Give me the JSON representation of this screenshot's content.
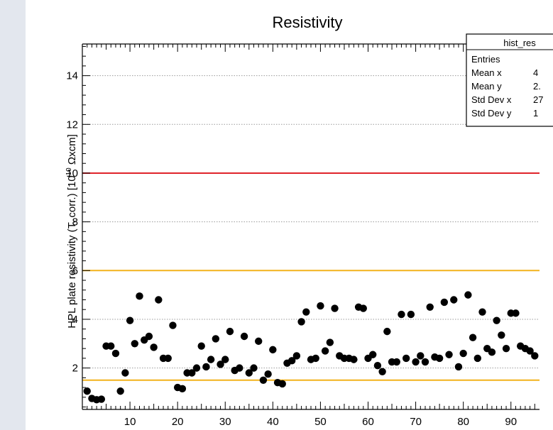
{
  "chart_data": {
    "type": "scatter",
    "title": "Resistivity",
    "ylabel_main": "HPL plate resistivity (T. corr.) [10",
    "ylabel_exp": "10",
    "ylabel_unit": " Ωxcm]",
    "xlabel": "",
    "xlim": [
      0,
      96
    ],
    "ylim": [
      0.3,
      15.3
    ],
    "x_ticks": [
      10,
      20,
      30,
      40,
      50,
      60,
      70,
      80,
      90
    ],
    "y_ticks": [
      2,
      4,
      6,
      8,
      10,
      12,
      14
    ],
    "grid": "horizontal dotted",
    "reference_lines": [
      {
        "y": 10,
        "color": "#e0242b"
      },
      {
        "y": 6,
        "color": "#f2b21c"
      },
      {
        "y": 1.5,
        "color": "#f2b21c"
      }
    ],
    "stats_box": {
      "title": "hist_res",
      "rows": [
        {
          "label": "Entries",
          "value": ""
        },
        {
          "label": "Mean x",
          "value": "4"
        },
        {
          "label": "Mean y",
          "value": "2."
        },
        {
          "label": "Std Dev x",
          "value": "27"
        },
        {
          "label": "Std Dev y",
          "value": "1"
        }
      ]
    },
    "marker_color": "#000000",
    "points": [
      [
        1,
        1.05
      ],
      [
        2,
        0.75
      ],
      [
        3,
        0.7
      ],
      [
        4,
        0.72
      ],
      [
        5,
        2.9
      ],
      [
        6,
        2.9
      ],
      [
        7,
        2.6
      ],
      [
        8,
        1.05
      ],
      [
        9,
        1.8
      ],
      [
        10,
        3.95
      ],
      [
        11,
        3.0
      ],
      [
        12,
        4.95
      ],
      [
        13,
        3.15
      ],
      [
        14,
        3.3
      ],
      [
        15,
        2.85
      ],
      [
        16,
        4.8
      ],
      [
        17,
        2.4
      ],
      [
        18,
        2.4
      ],
      [
        19,
        3.75
      ],
      [
        20,
        1.2
      ],
      [
        21,
        1.15
      ],
      [
        22,
        1.8
      ],
      [
        23,
        1.8
      ],
      [
        24,
        2.0
      ],
      [
        25,
        2.9
      ],
      [
        26,
        2.05
      ],
      [
        27,
        2.35
      ],
      [
        28,
        3.2
      ],
      [
        29,
        2.15
      ],
      [
        30,
        2.35
      ],
      [
        31,
        3.5
      ],
      [
        32,
        1.9
      ],
      [
        33,
        2.0
      ],
      [
        34,
        3.3
      ],
      [
        35,
        1.8
      ],
      [
        36,
        2.0
      ],
      [
        37,
        3.1
      ],
      [
        38,
        1.5
      ],
      [
        39,
        1.75
      ],
      [
        40,
        2.75
      ],
      [
        41,
        1.4
      ],
      [
        42,
        1.35
      ],
      [
        43,
        2.2
      ],
      [
        44,
        2.3
      ],
      [
        45,
        2.5
      ],
      [
        46,
        3.9
      ],
      [
        47,
        4.3
      ],
      [
        48,
        2.35
      ],
      [
        49,
        2.4
      ],
      [
        50,
        4.55
      ],
      [
        51,
        2.7
      ],
      [
        52,
        3.05
      ],
      [
        53,
        4.45
      ],
      [
        54,
        2.5
      ],
      [
        55,
        2.4
      ],
      [
        56,
        2.4
      ],
      [
        57,
        2.35
      ],
      [
        58,
        4.5
      ],
      [
        59,
        4.45
      ],
      [
        60,
        2.4
      ],
      [
        61,
        2.55
      ],
      [
        62,
        2.1
      ],
      [
        63,
        1.85
      ],
      [
        64,
        3.5
      ],
      [
        65,
        2.25
      ],
      [
        66,
        2.25
      ],
      [
        67,
        4.2
      ],
      [
        68,
        2.4
      ],
      [
        69,
        4.2
      ],
      [
        70,
        2.25
      ],
      [
        71,
        2.5
      ],
      [
        72,
        2.25
      ],
      [
        73,
        4.5
      ],
      [
        74,
        2.45
      ],
      [
        75,
        2.4
      ],
      [
        76,
        4.7
      ],
      [
        77,
        2.55
      ],
      [
        78,
        4.8
      ],
      [
        79,
        2.05
      ],
      [
        80,
        2.6
      ],
      [
        81,
        5.0
      ],
      [
        82,
        3.25
      ],
      [
        83,
        2.4
      ],
      [
        84,
        4.3
      ],
      [
        85,
        2.8
      ],
      [
        86,
        2.65
      ],
      [
        87,
        3.95
      ],
      [
        88,
        3.35
      ],
      [
        89,
        2.8
      ],
      [
        90,
        4.25
      ],
      [
        91,
        4.25
      ],
      [
        92,
        2.9
      ],
      [
        93,
        2.8
      ],
      [
        94,
        2.7
      ],
      [
        95,
        2.5
      ]
    ]
  }
}
